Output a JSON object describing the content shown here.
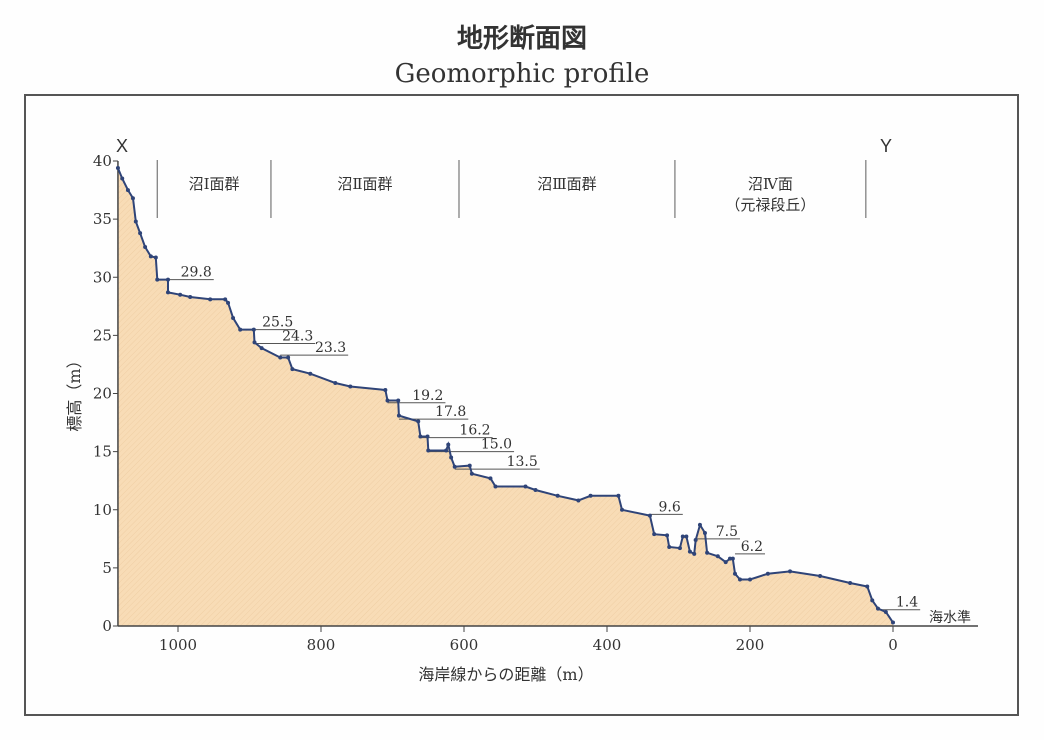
{
  "chart_data": {
    "type": "area",
    "title": "地形断面図",
    "subtitle": "Geomorphic profile",
    "xlabel": "海岸線からの距離（m）",
    "ylabel": "標高（m）",
    "xlim": [
      1084,
      -120
    ],
    "ylim": [
      0,
      40
    ],
    "x_ticks": [
      1000,
      800,
      600,
      400,
      200,
      0
    ],
    "y_ticks": [
      0,
      5,
      10,
      15,
      20,
      25,
      30,
      35,
      40
    ],
    "endpoint_labels": {
      "start": "X",
      "end": "Y"
    },
    "sea_level_label": "海水準",
    "sections": [
      {
        "label": "沼Ⅰ面群",
        "sub": "",
        "from": 1029,
        "to": 870
      },
      {
        "label": "沼Ⅱ面群",
        "sub": "",
        "from": 870,
        "to": 607
      },
      {
        "label": "沼Ⅲ面群",
        "sub": "",
        "from": 607,
        "to": 305
      },
      {
        "label": "沼Ⅳ面",
        "sub": "（元禄段丘）",
        "from": 305,
        "to": 38
      }
    ],
    "terrace_levels": [
      {
        "label": "29.8",
        "value": 29.8,
        "from": 1029,
        "to": 950
      },
      {
        "label": "25.5",
        "value": 25.5,
        "from": 913,
        "to": 836
      },
      {
        "label": "24.3",
        "value": 24.3,
        "from": 893,
        "to": 808
      },
      {
        "label": "23.3",
        "value": 23.3,
        "from": 857,
        "to": 762
      },
      {
        "label": "19.2",
        "value": 19.2,
        "from": 707,
        "to": 626
      },
      {
        "label": "17.8",
        "value": 17.8,
        "from": 691,
        "to": 594
      },
      {
        "label": "16.2",
        "value": 16.2,
        "from": 661,
        "to": 560
      },
      {
        "label": "15.0",
        "value": 15.0,
        "from": 650,
        "to": 530
      },
      {
        "label": "13.5",
        "value": 13.5,
        "from": 613,
        "to": 494
      },
      {
        "label": "9.6",
        "value": 9.6,
        "from": 340,
        "to": 294
      },
      {
        "label": "7.5",
        "value": 7.5,
        "from": 276,
        "to": 214
      },
      {
        "label": "6.2",
        "value": 6.2,
        "from": 221,
        "to": 179
      },
      {
        "label": "1.4",
        "value": 1.4,
        "from": 21,
        "to": -38
      }
    ],
    "series": [
      {
        "name": "profile",
        "points": [
          [
            1084,
            39.4
          ],
          [
            1078,
            38.5
          ],
          [
            1070,
            37.5
          ],
          [
            1063,
            36.8
          ],
          [
            1059,
            34.8
          ],
          [
            1053,
            33.8
          ],
          [
            1046,
            32.6
          ],
          [
            1038,
            31.8
          ],
          [
            1031,
            31.7
          ],
          [
            1029,
            29.8
          ],
          [
            1014,
            29.8
          ],
          [
            1014,
            28.7
          ],
          [
            997,
            28.5
          ],
          [
            983,
            28.3
          ],
          [
            955,
            28.1
          ],
          [
            934,
            28.1
          ],
          [
            930,
            27.8
          ],
          [
            923,
            26.5
          ],
          [
            913,
            25.5
          ],
          [
            894,
            25.5
          ],
          [
            893,
            24.4
          ],
          [
            883,
            23.9
          ],
          [
            857,
            23.1
          ],
          [
            846,
            23.1
          ],
          [
            840,
            22.1
          ],
          [
            815,
            21.7
          ],
          [
            780,
            20.9
          ],
          [
            759,
            20.6
          ],
          [
            710,
            20.3
          ],
          [
            707,
            19.4
          ],
          [
            692,
            19.4
          ],
          [
            691,
            18.1
          ],
          [
            664,
            17.6
          ],
          [
            661,
            16.3
          ],
          [
            651,
            16.3
          ],
          [
            650,
            15.1
          ],
          [
            625,
            15.1
          ],
          [
            622,
            15.6
          ],
          [
            618,
            14.5
          ],
          [
            613,
            13.7
          ],
          [
            592,
            13.8
          ],
          [
            589,
            13.1
          ],
          [
            563,
            12.7
          ],
          [
            556,
            12.0
          ],
          [
            514,
            12.0
          ],
          [
            500,
            11.7
          ],
          [
            469,
            11.2
          ],
          [
            440,
            10.8
          ],
          [
            423,
            11.2
          ],
          [
            384,
            11.2
          ],
          [
            379,
            10.0
          ],
          [
            340,
            9.5
          ],
          [
            334,
            7.9
          ],
          [
            316,
            7.8
          ],
          [
            313,
            6.8
          ],
          [
            298,
            6.7
          ],
          [
            294,
            7.7
          ],
          [
            289,
            7.7
          ],
          [
            284,
            6.4
          ],
          [
            278,
            6.2
          ],
          [
            276,
            7.4
          ],
          [
            270,
            8.7
          ],
          [
            263,
            8.0
          ],
          [
            260,
            6.3
          ],
          [
            245,
            6.0
          ],
          [
            234,
            5.5
          ],
          [
            228,
            5.8
          ],
          [
            224,
            5.8
          ],
          [
            221,
            4.5
          ],
          [
            214,
            4.0
          ],
          [
            200,
            4.0
          ],
          [
            175,
            4.5
          ],
          [
            144,
            4.7
          ],
          [
            102,
            4.3
          ],
          [
            60,
            3.7
          ],
          [
            36,
            3.4
          ],
          [
            29,
            2.2
          ],
          [
            21,
            1.5
          ],
          [
            10,
            1.2
          ],
          [
            0,
            0.3
          ]
        ]
      }
    ],
    "colors": {
      "fill": "#f8dcb6",
      "line": "#2f4478",
      "axis": "#444444",
      "frame": "#555555"
    }
  }
}
